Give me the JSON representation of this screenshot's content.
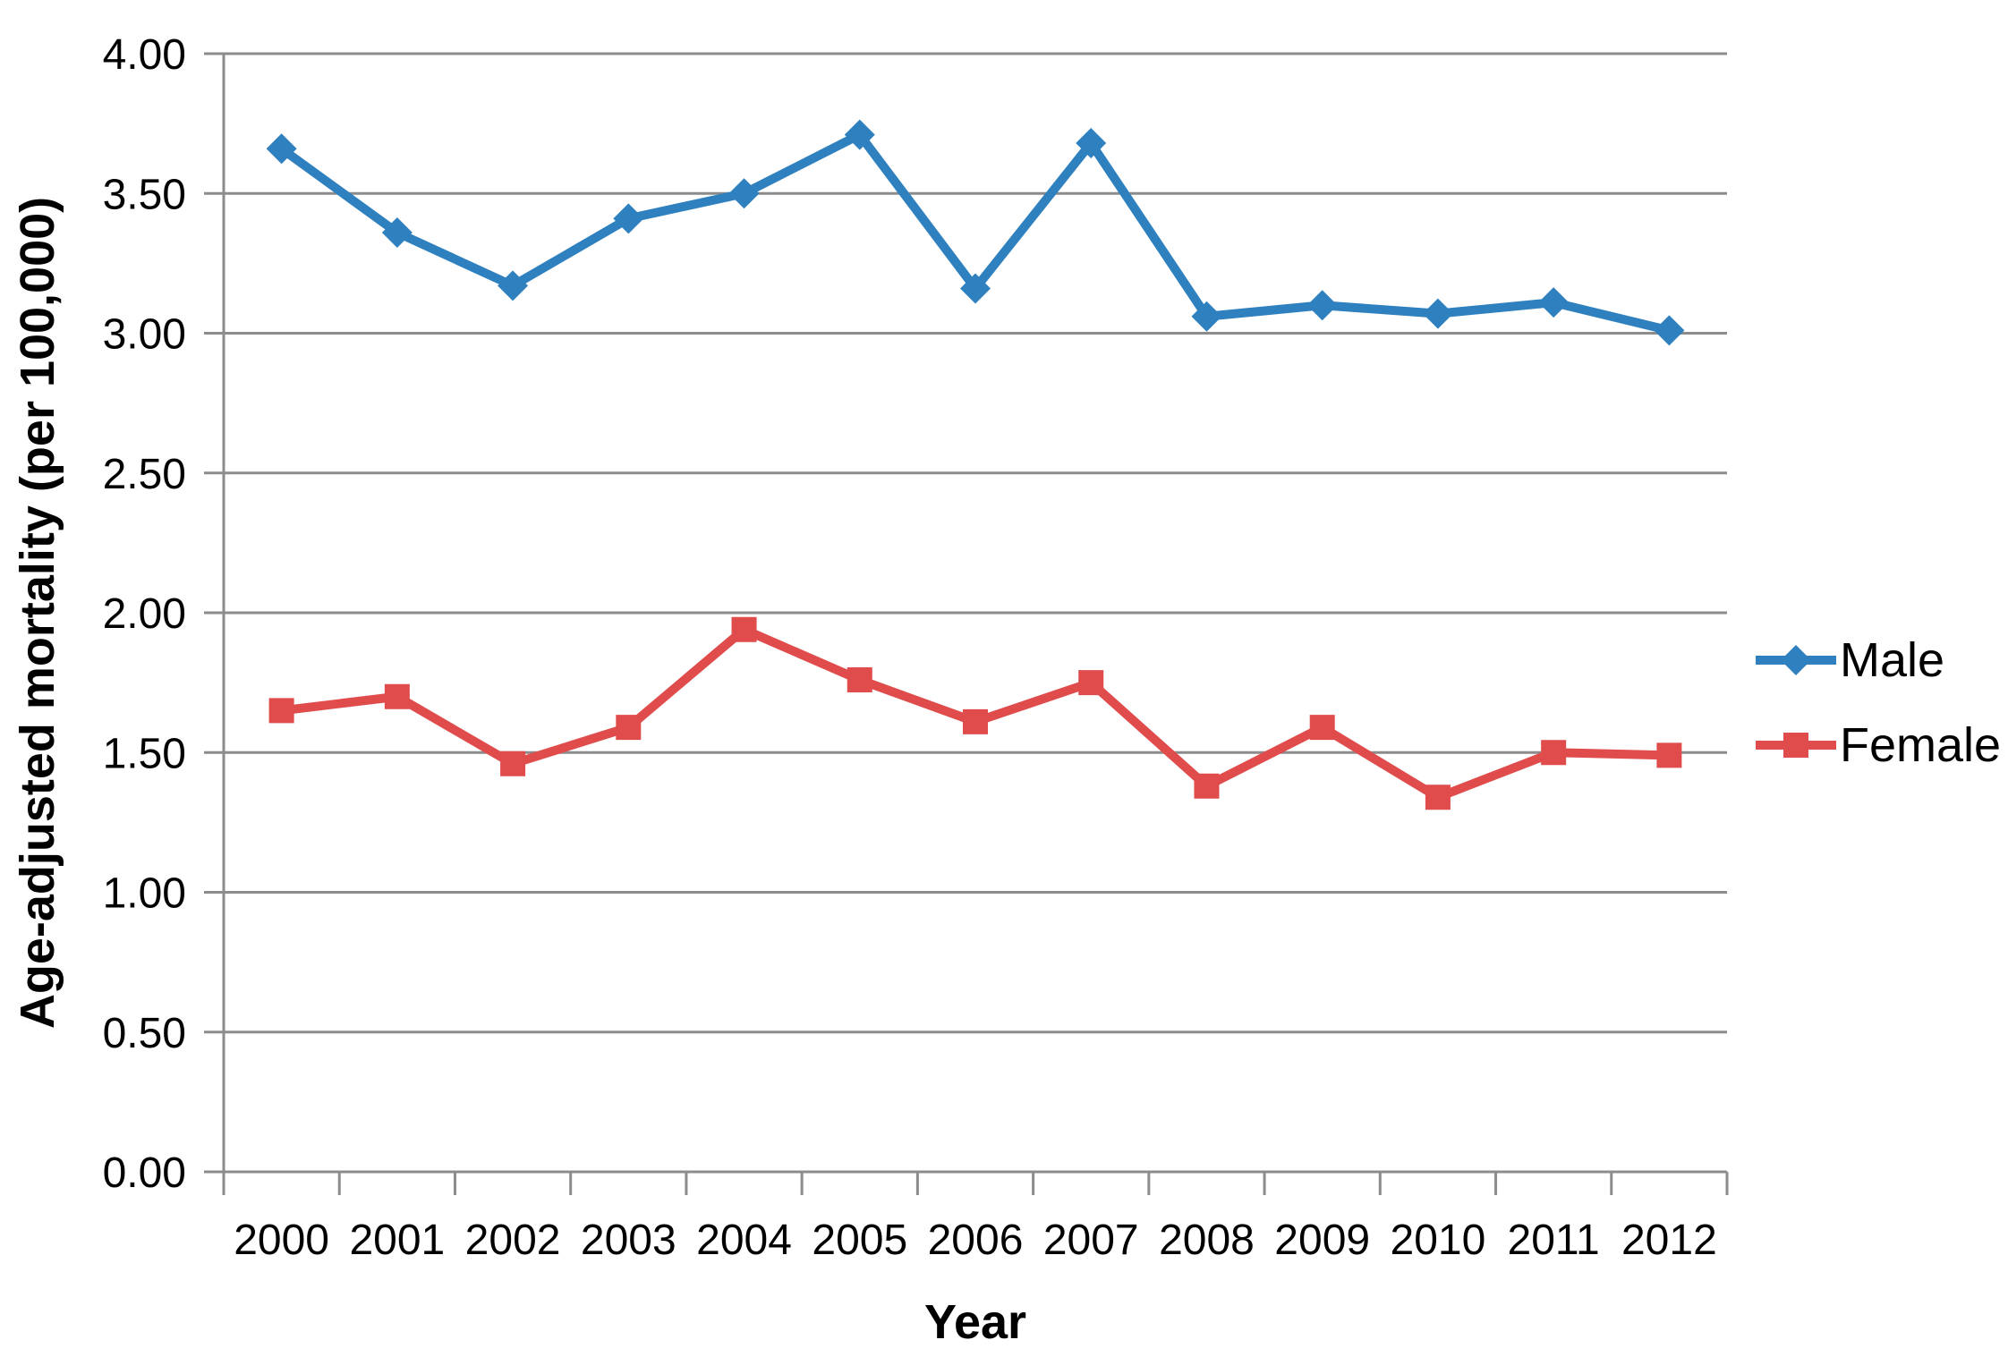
{
  "chart_data": {
    "type": "line",
    "title": "",
    "xlabel": "Year",
    "ylabel": "Age-adjusted mortality (per 100,000)",
    "categories": [
      "2000",
      "2001",
      "2002",
      "2003",
      "2004",
      "2005",
      "2006",
      "2007",
      "2008",
      "2009",
      "2010",
      "2011",
      "2012"
    ],
    "series": [
      {
        "name": "Male",
        "marker": "diamond",
        "color": "#2E80BF",
        "values": [
          3.66,
          3.36,
          3.17,
          3.41,
          3.5,
          3.71,
          3.16,
          3.68,
          3.06,
          3.1,
          3.07,
          3.11,
          3.01
        ]
      },
      {
        "name": "Female",
        "marker": "square",
        "color": "#E04C4C",
        "values": [
          1.65,
          1.7,
          1.46,
          1.59,
          1.94,
          1.76,
          1.61,
          1.75,
          1.38,
          1.59,
          1.34,
          1.5,
          1.49
        ]
      }
    ],
    "ylim": [
      0,
      4
    ],
    "ytick_step": 0.5,
    "ytick_decimals": 2,
    "grid": true,
    "legend_position": "right",
    "grid_color": "#8C8C8C",
    "axis_color": "#8C8C8C",
    "text_color": "#000000",
    "background": "#FFFFFF"
  }
}
